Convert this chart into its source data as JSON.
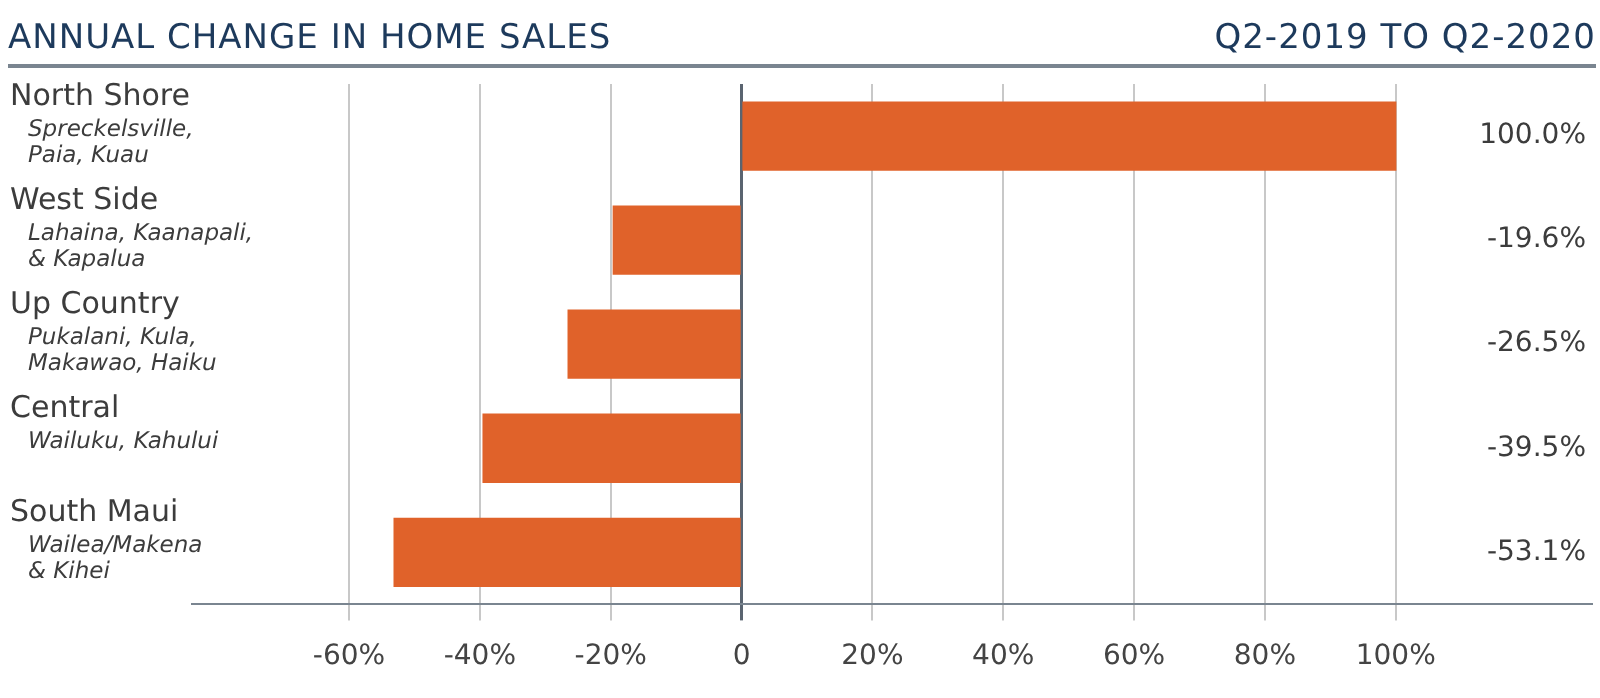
{
  "chart_data": {
    "type": "bar",
    "orientation": "horizontal",
    "title": "ANNUAL CHANGE IN HOME SALES",
    "subtitle": "Q2-2019 TO Q2-2020",
    "categories": [
      "North Shore\nSpreckelsville,\nPaia, Kuau",
      "West Side\nLahaina, Kaanapali,\n& Kapalua",
      "Up Country\nPukalani, Kula,\nMakawao, Haiku",
      "Central\nWailuku, Kahului",
      "South Maui\nWailea/Makena\n& Kihei"
    ],
    "values": [
      100,
      -19.6,
      -26.5,
      -39.5,
      -53.1
    ],
    "value_labels": [
      "100.0%",
      "-19.6%",
      "-26.5%",
      "-39.5%",
      "-53.1%"
    ],
    "color": "#e0622a",
    "xlim": [
      -84,
      130
    ],
    "xticks": [
      {
        "value": -60,
        "label": "-60%"
      },
      {
        "value": -40,
        "label": "-40%"
      },
      {
        "value": -20,
        "label": "-20%"
      },
      0,
      {
        "value": 20,
        "label": "20%"
      },
      {
        "value": 40,
        "label": "40%"
      },
      {
        "value": 60,
        "label": "60%"
      },
      {
        "value": 80,
        "label": "80%"
      },
      {
        "value": 100,
        "label": "100%"
      }
    ],
    "grid": "x"
  }
}
